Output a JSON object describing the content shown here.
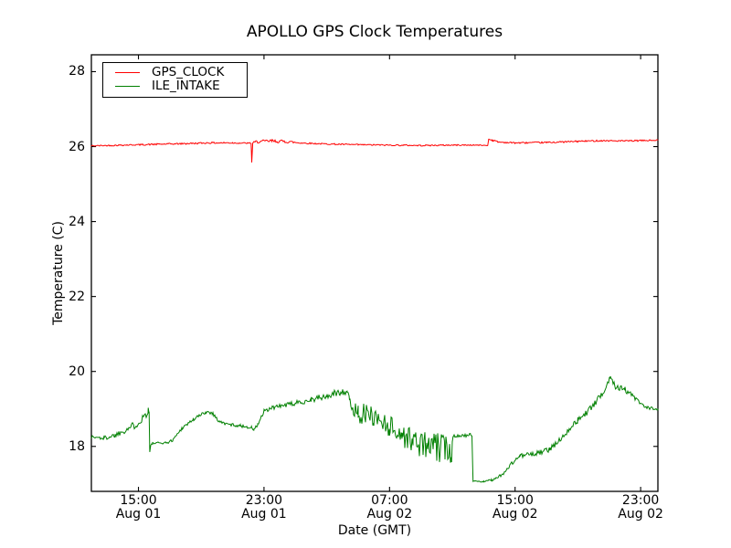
{
  "chart_data": {
    "type": "line",
    "title": "APOLLO GPS Clock Temperatures",
    "xlabel": "Date (GMT)",
    "ylabel": "Temperature (C)",
    "grid": false,
    "x_unit_hours_since": "Aug 01 12:00 GMT",
    "xlim": [
      0,
      36.1
    ],
    "ylim": [
      16.8,
      28.45
    ],
    "yticks": [
      {
        "v": 18,
        "label": "18"
      },
      {
        "v": 20,
        "label": "20"
      },
      {
        "v": 22,
        "label": "22"
      },
      {
        "v": 24,
        "label": "24"
      },
      {
        "v": 26,
        "label": "26"
      },
      {
        "v": 28,
        "label": "28"
      }
    ],
    "xticks": [
      {
        "t": 3,
        "lines": [
          "15:00",
          "Aug 01"
        ]
      },
      {
        "t": 11,
        "lines": [
          "23:00",
          "Aug 01"
        ]
      },
      {
        "t": 19,
        "lines": [
          "07:00",
          "Aug 02"
        ]
      },
      {
        "t": 27,
        "lines": [
          "15:00",
          "Aug 02"
        ]
      },
      {
        "t": 35,
        "lines": [
          "23:00",
          "Aug 02"
        ]
      }
    ],
    "legend": {
      "position": "upper left"
    },
    "series": [
      {
        "name": "GPS_CLOCK",
        "color": "#ff0000",
        "points_format": [
          "hours",
          "temp_C",
          "noise_amp_C"
        ],
        "points": [
          [
            0.0,
            26.02,
            0.018
          ],
          [
            2.0,
            26.04,
            0.018
          ],
          [
            4.0,
            26.06,
            0.022
          ],
          [
            6.0,
            26.08,
            0.02
          ],
          [
            7.5,
            26.1,
            0.022
          ],
          [
            9.0,
            26.1,
            0.02
          ],
          [
            10.1,
            26.09,
            0.018
          ],
          [
            10.18,
            26.08,
            0.0
          ],
          [
            10.22,
            25.58,
            0.0
          ],
          [
            10.28,
            26.1,
            0.02
          ],
          [
            10.5,
            26.13,
            0.04
          ],
          [
            11.5,
            26.15,
            0.045
          ],
          [
            12.6,
            26.13,
            0.04
          ],
          [
            13.2,
            26.1,
            0.02
          ],
          [
            15.0,
            26.07,
            0.018
          ],
          [
            17.0,
            26.05,
            0.018
          ],
          [
            19.0,
            26.04,
            0.018
          ],
          [
            21.0,
            26.03,
            0.018
          ],
          [
            23.0,
            26.04,
            0.018
          ],
          [
            24.5,
            26.04,
            0.015
          ],
          [
            25.25,
            26.03,
            0.012
          ],
          [
            25.32,
            26.2,
            0.015
          ],
          [
            25.55,
            26.17,
            0.02
          ],
          [
            26.0,
            26.12,
            0.02
          ],
          [
            27.0,
            26.1,
            0.02
          ],
          [
            29.0,
            26.11,
            0.02
          ],
          [
            31.0,
            26.14,
            0.022
          ],
          [
            32.5,
            26.16,
            0.02
          ],
          [
            34.0,
            26.15,
            0.02
          ],
          [
            36.1,
            26.17,
            0.02
          ]
        ]
      },
      {
        "name": "ILE_INTAKE",
        "color": "#008000",
        "points_format": [
          "hours",
          "temp_C",
          "noise_amp_C"
        ],
        "points": [
          [
            0.0,
            18.25,
            0.06
          ],
          [
            0.8,
            18.22,
            0.06
          ],
          [
            1.5,
            18.3,
            0.07
          ],
          [
            2.2,
            18.45,
            0.09
          ],
          [
            2.9,
            18.6,
            0.11
          ],
          [
            3.3,
            18.78,
            0.13
          ],
          [
            3.62,
            18.95,
            0.12
          ],
          [
            3.68,
            18.9,
            0.0
          ],
          [
            3.72,
            17.85,
            0.0
          ],
          [
            3.78,
            18.02,
            0.02
          ],
          [
            3.9,
            18.08,
            0.03
          ],
          [
            4.9,
            18.1,
            0.03
          ],
          [
            5.2,
            18.18,
            0.04
          ],
          [
            5.8,
            18.5,
            0.05
          ],
          [
            6.5,
            18.72,
            0.05
          ],
          [
            7.3,
            18.92,
            0.05
          ],
          [
            7.7,
            18.9,
            0.05
          ],
          [
            8.1,
            18.68,
            0.04
          ],
          [
            8.5,
            18.6,
            0.04
          ],
          [
            9.5,
            18.55,
            0.04
          ],
          [
            10.2,
            18.5,
            0.04
          ],
          [
            10.35,
            18.44,
            0.03
          ],
          [
            10.6,
            18.58,
            0.06
          ],
          [
            11.0,
            18.92,
            0.07
          ],
          [
            11.6,
            19.04,
            0.06
          ],
          [
            12.4,
            19.1,
            0.06
          ],
          [
            13.0,
            19.15,
            0.07
          ],
          [
            14.0,
            19.25,
            0.08
          ],
          [
            15.0,
            19.33,
            0.09
          ],
          [
            15.8,
            19.45,
            0.1
          ],
          [
            16.3,
            19.48,
            0.1
          ],
          [
            16.45,
            19.1,
            0.25
          ],
          [
            17.0,
            18.9,
            0.28
          ],
          [
            18.0,
            18.8,
            0.28
          ],
          [
            19.0,
            18.55,
            0.3
          ],
          [
            19.8,
            18.3,
            0.3
          ],
          [
            20.5,
            18.15,
            0.35
          ],
          [
            21.5,
            18.0,
            0.38
          ],
          [
            22.5,
            17.95,
            0.4
          ],
          [
            22.95,
            17.9,
            0.35
          ],
          [
            23.05,
            18.28,
            0.04
          ],
          [
            24.15,
            18.3,
            0.05
          ],
          [
            24.25,
            18.28,
            0.0
          ],
          [
            24.32,
            17.08,
            0.01
          ],
          [
            25.0,
            17.06,
            0.02
          ],
          [
            25.5,
            17.1,
            0.03
          ],
          [
            26.2,
            17.25,
            0.04
          ],
          [
            26.8,
            17.55,
            0.05
          ],
          [
            27.3,
            17.75,
            0.06
          ],
          [
            28.3,
            17.8,
            0.07
          ],
          [
            29.2,
            17.92,
            0.07
          ],
          [
            29.8,
            18.15,
            0.07
          ],
          [
            30.4,
            18.45,
            0.08
          ],
          [
            31.0,
            18.7,
            0.08
          ],
          [
            31.6,
            18.92,
            0.08
          ],
          [
            32.2,
            19.2,
            0.08
          ],
          [
            32.8,
            19.6,
            0.1
          ],
          [
            33.05,
            19.85,
            0.1
          ],
          [
            33.4,
            19.62,
            0.09
          ],
          [
            34.0,
            19.52,
            0.08
          ],
          [
            34.6,
            19.3,
            0.07
          ],
          [
            35.2,
            19.05,
            0.06
          ],
          [
            36.1,
            18.97,
            0.05
          ]
        ]
      }
    ]
  }
}
